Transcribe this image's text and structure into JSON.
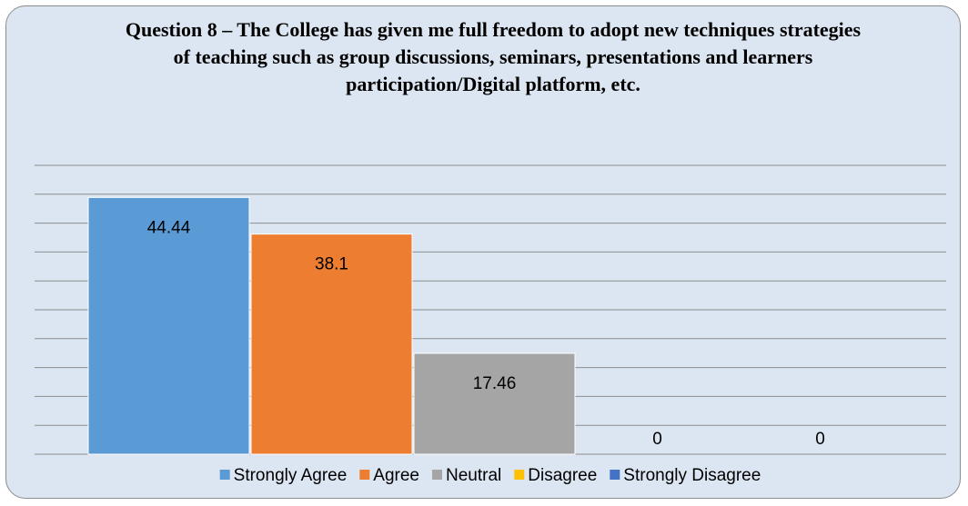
{
  "chart_data": {
    "type": "bar",
    "title": "Question 8 – The College has given me full freedom to adopt new techniques strategies of teaching such as group discussions, seminars, presentations and learners participation/Digital platform, etc.",
    "series": [
      {
        "name": "Strongly Agree",
        "color": "#5b9bd5",
        "values": [
          44.44
        ]
      },
      {
        "name": "Agree",
        "color": "#ed7d31",
        "values": [
          38.1
        ]
      },
      {
        "name": "Neutral",
        "color": "#a5a5a5",
        "values": [
          17.46
        ]
      },
      {
        "name": "Disagree",
        "color": "#ffc000",
        "values": [
          0
        ]
      },
      {
        "name": "Strongly Disagree",
        "color": "#4472c4",
        "values": [
          0
        ]
      }
    ],
    "ylim": [
      0,
      50
    ],
    "yticks": [
      0,
      5,
      10,
      15,
      20,
      25,
      30,
      35,
      40,
      45,
      50
    ],
    "grid": true,
    "legend": "bottom"
  }
}
